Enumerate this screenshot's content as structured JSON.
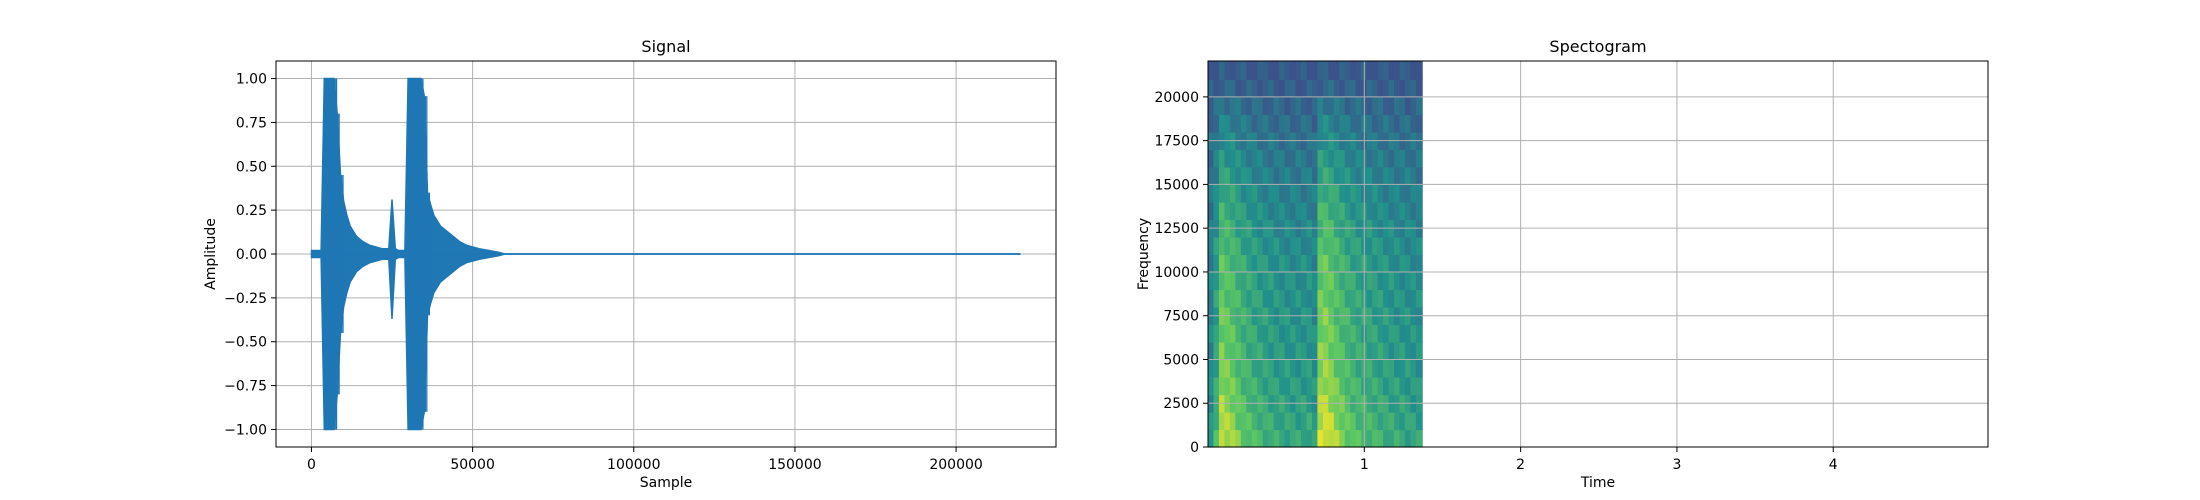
{
  "chart_data": [
    {
      "type": "line",
      "title": "Signal",
      "xlabel": "Sample",
      "ylabel": "Amplitude",
      "xlim": [
        -11000,
        231000
      ],
      "ylim": [
        -1.1,
        1.1
      ],
      "xticks": [
        0,
        50000,
        100000,
        150000,
        200000
      ],
      "xtick_labels": [
        "0",
        "50000",
        "100000",
        "150000",
        "200000"
      ],
      "yticks": [
        1.0,
        0.75,
        0.5,
        0.25,
        0.0,
        -0.25,
        -0.5,
        -0.75,
        -1.0
      ],
      "ytick_labels": [
        "1.00",
        "0.75",
        "0.50",
        "0.25",
        "0.00",
        "−0.25",
        "−0.50",
        "−0.75",
        "−1.00"
      ],
      "grid": true,
      "color": "#1f77b4",
      "series": [
        {
          "x": [
            0,
            1000,
            2000,
            3000,
            4000,
            5000,
            6000,
            7000,
            8000,
            9000,
            10000,
            11000,
            12000,
            14000,
            16000,
            18000,
            20000,
            22000,
            24000,
            25000,
            26000,
            27000,
            28000,
            29000,
            30000,
            31000,
            32000,
            33000,
            34000,
            35000,
            36000,
            37000,
            38000,
            40000,
            42000,
            44000,
            46000,
            48000,
            50000,
            52000,
            55000,
            58000,
            60000,
            100000,
            150000,
            200000,
            220000
          ],
          "y_upper": [
            0.02,
            0.02,
            0.02,
            0.02,
            1.0,
            1.0,
            1.0,
            1.0,
            0.8,
            0.45,
            0.3,
            0.22,
            0.16,
            0.1,
            0.07,
            0.05,
            0.04,
            0.03,
            0.03,
            0.31,
            0.03,
            0.02,
            0.02,
            0.02,
            1.0,
            1.0,
            1.0,
            1.0,
            1.0,
            0.9,
            0.35,
            0.28,
            0.22,
            0.16,
            0.13,
            0.1,
            0.07,
            0.05,
            0.04,
            0.03,
            0.02,
            0.01,
            0.0,
            0.0,
            0.0,
            0.0,
            0.0
          ],
          "y_lower": [
            -0.02,
            -0.02,
            -0.02,
            -0.02,
            -1.0,
            -1.0,
            -1.0,
            -1.0,
            -0.8,
            -0.45,
            -0.3,
            -0.22,
            -0.16,
            -0.1,
            -0.07,
            -0.05,
            -0.04,
            -0.03,
            -0.03,
            -0.37,
            -0.03,
            -0.02,
            -0.02,
            -0.02,
            -1.0,
            -1.0,
            -1.0,
            -1.0,
            -1.0,
            -0.9,
            -0.35,
            -0.28,
            -0.22,
            -0.16,
            -0.13,
            -0.1,
            -0.07,
            -0.05,
            -0.04,
            -0.03,
            -0.02,
            -0.01,
            0.0,
            0.0,
            0.0,
            0.0,
            0.0
          ]
        }
      ]
    },
    {
      "type": "heatmap",
      "title": "Spectogram",
      "xlabel": "Time",
      "ylabel": "Frequency",
      "xlim": [
        0,
        4.99
      ],
      "ylim": [
        0,
        22050
      ],
      "xticks": [
        1,
        2,
        3,
        4
      ],
      "xtick_labels": [
        "1",
        "2",
        "3",
        "4"
      ],
      "yticks": [
        0,
        2500,
        5000,
        7500,
        10000,
        12500,
        15000,
        17500,
        20000
      ],
      "ytick_labels": [
        "0",
        "2500",
        "5000",
        "7500",
        "10000",
        "12500",
        "15000",
        "17500",
        "20000"
      ],
      "grid": true,
      "colormap": [
        "#3b528b",
        "#21918c",
        "#5ec962",
        "#fde725"
      ],
      "data_extent_x": [
        0,
        1.37
      ],
      "time_bins": [
        0.0,
        0.035,
        0.07,
        0.105,
        0.14,
        0.175,
        0.21,
        0.245,
        0.28,
        0.315,
        0.35,
        0.385,
        0.42,
        0.455,
        0.49,
        0.525,
        0.56,
        0.595,
        0.63,
        0.665,
        0.7,
        0.735,
        0.77,
        0.805,
        0.84,
        0.875,
        0.91,
        0.945,
        0.98,
        1.015,
        1.05,
        1.085,
        1.12,
        1.155,
        1.19,
        1.225,
        1.26,
        1.295,
        1.33
      ],
      "freq_bins": [
        0,
        1000,
        2000,
        3000,
        4000,
        5000,
        6000,
        7000,
        8000,
        9000,
        10000,
        11000,
        12000,
        13000,
        14000,
        15000,
        16000,
        17000,
        18000,
        19000,
        20000,
        21000
      ],
      "time_energy": [
        0.35,
        0.55,
        0.9,
        0.85,
        0.8,
        0.72,
        0.66,
        0.62,
        0.58,
        0.55,
        0.52,
        0.5,
        0.48,
        0.47,
        0.46,
        0.45,
        0.45,
        0.45,
        0.46,
        0.4,
        0.92,
        0.95,
        0.88,
        0.8,
        0.74,
        0.68,
        0.63,
        0.6,
        0.58,
        0.56,
        0.54,
        0.52,
        0.5,
        0.48,
        0.47,
        0.46,
        0.45,
        0.44,
        0.43
      ],
      "freq_profile": [
        1.0,
        0.95,
        0.9,
        0.86,
        0.82,
        0.8,
        0.78,
        0.76,
        0.74,
        0.72,
        0.7,
        0.66,
        0.62,
        0.58,
        0.53,
        0.48,
        0.42,
        0.36,
        0.3,
        0.22,
        0.12,
        0.05
      ]
    }
  ]
}
